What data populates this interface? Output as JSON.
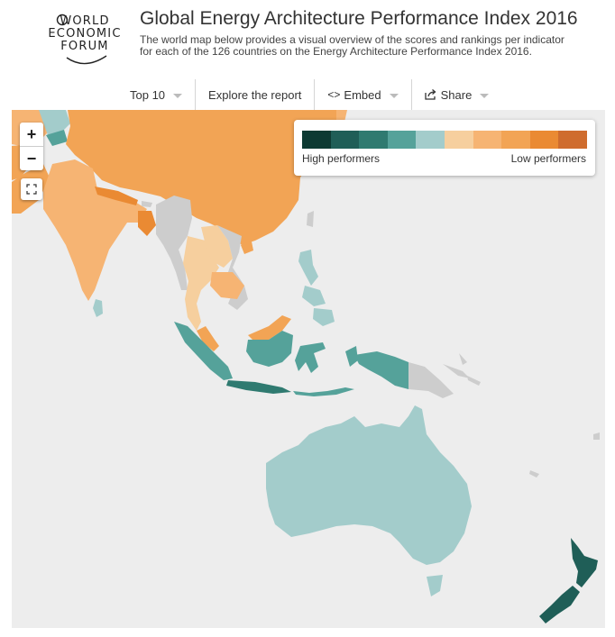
{
  "logo": {
    "lines": [
      "WORLD",
      "ECONOMIC",
      "FORUM"
    ]
  },
  "header": {
    "title": "Global Energy Architecture Performance Index 2016",
    "subtitle": "The world map below provides a visual overview of the scores and rankings per indicator for each of the 126 countries on the Energy Architecture Performance Index 2016."
  },
  "nav": {
    "top10": "Top 10",
    "explore": "Explore the report",
    "embed": "Embed",
    "share": "Share"
  },
  "map_controls": {
    "zoom_in": "+",
    "zoom_out": "−"
  },
  "legend": {
    "high": "High performers",
    "low": "Low performers",
    "colors": [
      "#0d3a33",
      "#1f5e57",
      "#2f7a70",
      "#55a29a",
      "#a3cccb",
      "#f6cf9e",
      "#f6b473",
      "#f2a455",
      "#ea8a33",
      "#cf6c2e"
    ]
  },
  "colors": {
    "no_data": "#cdcdcd",
    "ocean": "#ededed"
  }
}
